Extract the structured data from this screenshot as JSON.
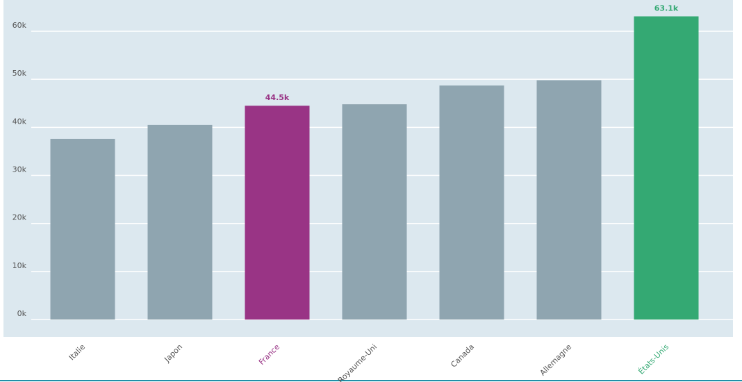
{
  "chart_data": {
    "type": "bar",
    "categories": [
      "Italie",
      "Japon",
      "France",
      "Royaume-Uni",
      "Canada",
      "Allemagne",
      "États-Unis"
    ],
    "values": [
      37.6,
      40.5,
      44.5,
      44.8,
      48.7,
      49.8,
      63.1
    ],
    "value_labels": [
      null,
      null,
      "44.5k",
      null,
      null,
      null,
      "63.1k"
    ],
    "colors": [
      "#8fa5b0",
      "#8fa5b0",
      "#993485",
      "#8fa5b0",
      "#8fa5b0",
      "#8fa5b0",
      "#34a973"
    ],
    "label_colors": [
      "#555555",
      "#555555",
      "#993485",
      "#555555",
      "#555555",
      "#555555",
      "#34a973"
    ],
    "ylim": [
      -3.6,
      66.5
    ],
    "yticks": [
      {
        "value": 0,
        "label": "0k"
      },
      {
        "value": 10,
        "label": "10k"
      },
      {
        "value": 20,
        "label": "20k"
      },
      {
        "value": 30,
        "label": "30k"
      },
      {
        "value": 40,
        "label": "40k"
      },
      {
        "value": 50,
        "label": "50k"
      },
      {
        "value": 60,
        "label": "60k"
      }
    ],
    "grid": true
  }
}
